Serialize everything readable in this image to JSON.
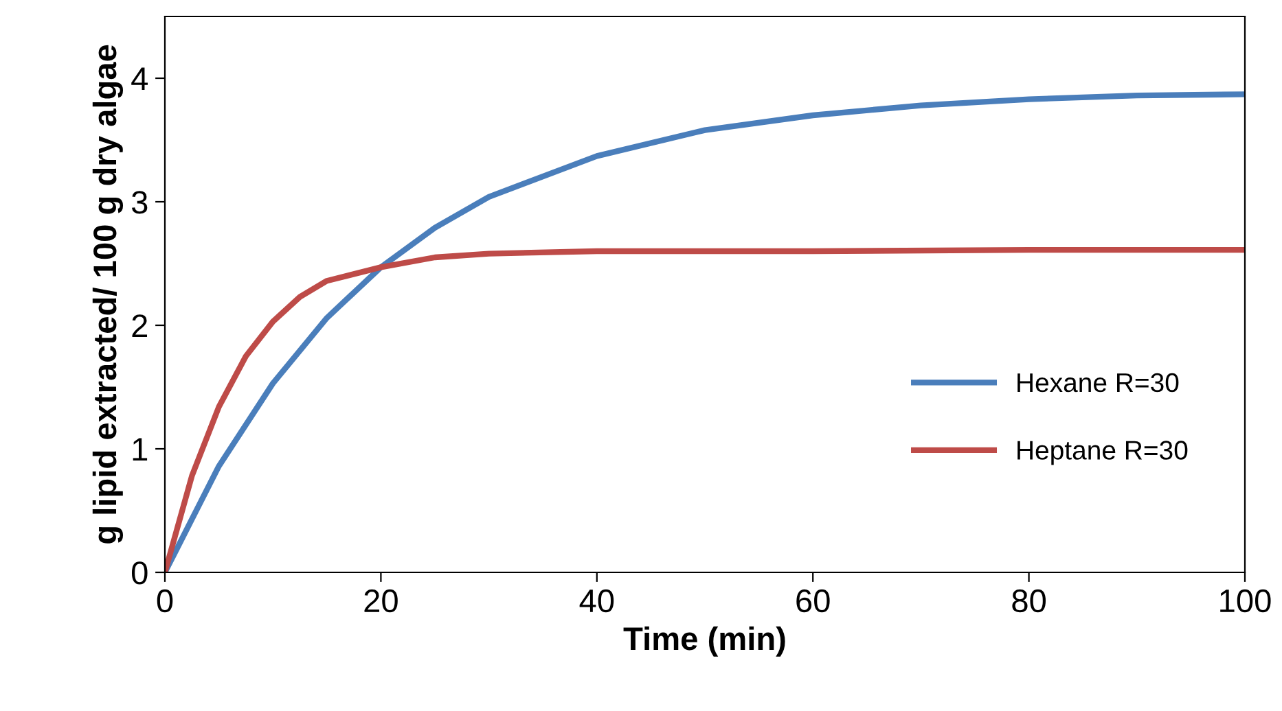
{
  "chart_data": {
    "type": "line",
    "xlabel": "Time (min)",
    "ylabel": "g lipid extracted/ 100 g dry algae",
    "xlim": [
      0,
      100
    ],
    "xticks": [
      0,
      20,
      40,
      60,
      80,
      100
    ],
    "ylim": [
      0,
      4.5
    ],
    "yticks": [
      0,
      1,
      2,
      3,
      4
    ],
    "grid": false,
    "legend": "bottom right",
    "marker": "none",
    "line_style": "solid",
    "series": [
      {
        "name": "Hexane R=30",
        "color": "#4a7ebb",
        "x": [
          0,
          5,
          10,
          15,
          20,
          25,
          30,
          40,
          50,
          60,
          70,
          80,
          90,
          100
        ],
        "values": [
          0,
          0.86,
          1.53,
          2.06,
          2.47,
          2.79,
          3.04,
          3.37,
          3.58,
          3.7,
          3.78,
          3.83,
          3.86,
          3.87
        ]
      },
      {
        "name": "Heptane R=30",
        "color": "#be4b48",
        "x": [
          0,
          2.5,
          5,
          7.5,
          10,
          12.5,
          15,
          20,
          25,
          30,
          40,
          60,
          80,
          100
        ],
        "values": [
          0,
          0.78,
          1.34,
          1.75,
          2.03,
          2.23,
          2.36,
          2.47,
          2.55,
          2.58,
          2.6,
          2.6,
          2.61,
          2.61
        ]
      }
    ]
  }
}
